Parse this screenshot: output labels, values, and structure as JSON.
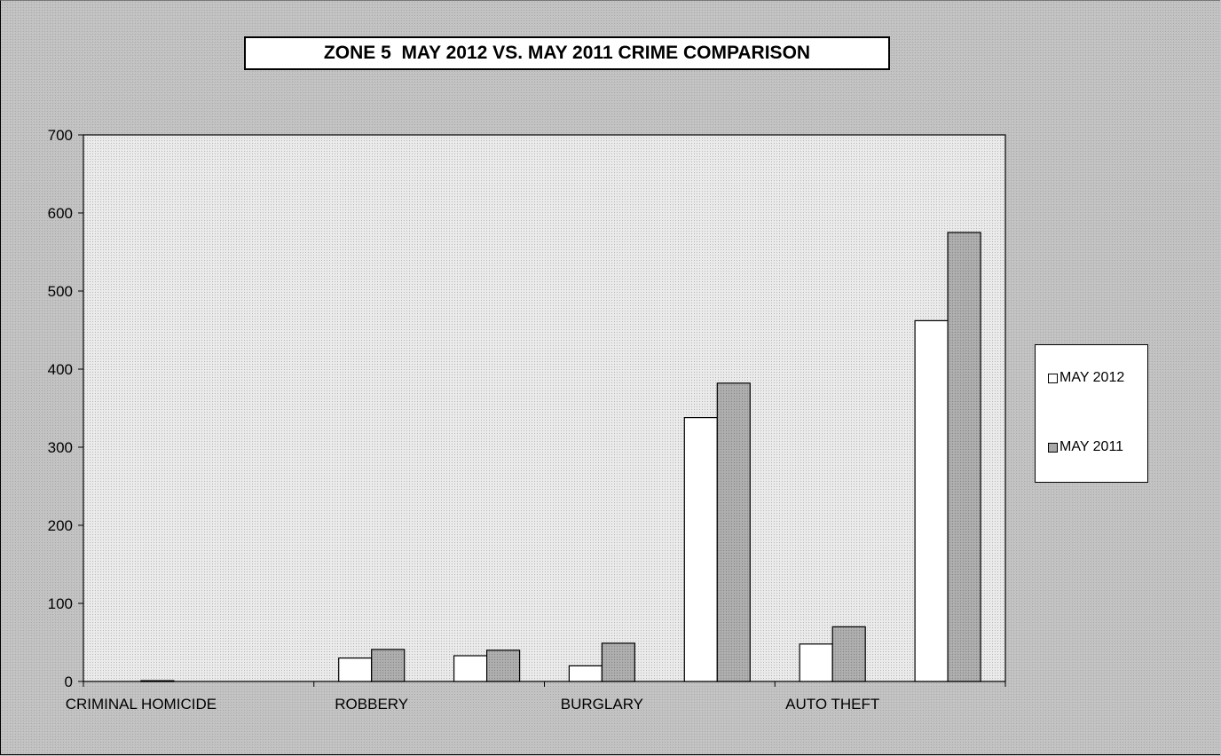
{
  "chart_data": {
    "type": "bar",
    "title": "ZONE 5  MAY 2012 VS. MAY 2011 CRIME COMPARISON",
    "xlabel": "",
    "ylabel": "",
    "ylim": [
      0,
      700
    ],
    "yticks": [
      0,
      100,
      200,
      300,
      400,
      500,
      600,
      700
    ],
    "grid": false,
    "legend_position": "right",
    "categories": [
      "CRIMINAL HOMICIDE",
      "",
      "ROBBERY",
      "",
      "BURGLARY",
      "",
      "AUTO THEFT",
      ""
    ],
    "series": [
      {
        "name": "MAY 2012",
        "color": "#ffffff",
        "values": [
          0,
          0,
          30,
          33,
          20,
          338,
          48,
          462
        ]
      },
      {
        "name": "MAY 2011",
        "color": "#a8a8a8",
        "values": [
          1,
          0,
          41,
          40,
          49,
          382,
          70,
          575
        ]
      }
    ]
  }
}
